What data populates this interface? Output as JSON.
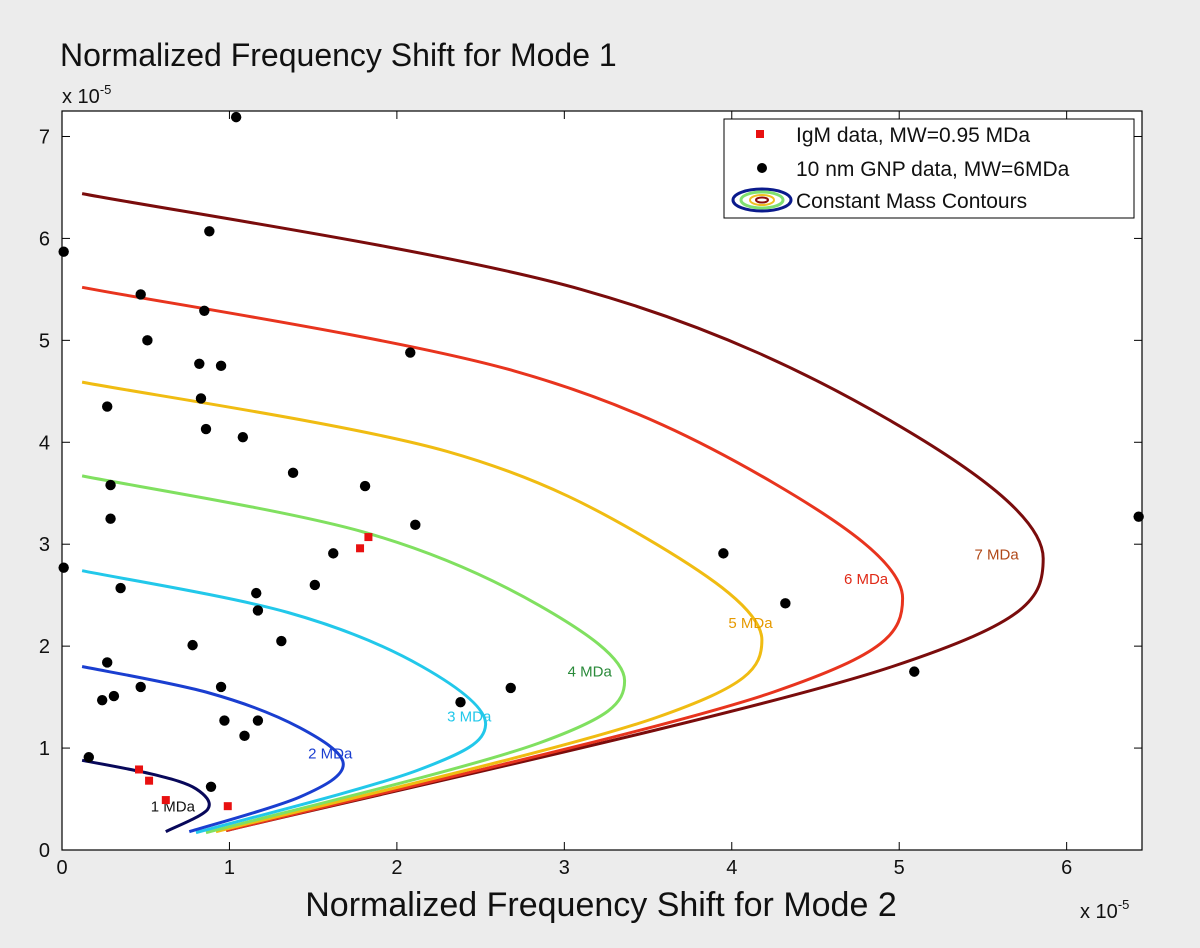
{
  "chart_data": {
    "type": "scatter",
    "title": "Normalized Frequency Shift for Mode 1",
    "xlabel": "Normalized Frequency Shift for Mode 2",
    "ylabel": "",
    "x_multiplier": {
      "base": "x 10",
      "exp": "-5"
    },
    "y_multiplier": {
      "base": "x 10",
      "exp": "-5"
    },
    "xlim": [
      0,
      6.45
    ],
    "ylim": [
      0,
      7.25
    ],
    "x_ticks": [
      0,
      1,
      2,
      3,
      4,
      5,
      6
    ],
    "y_ticks": [
      0,
      1,
      2,
      3,
      4,
      5,
      6,
      7
    ],
    "x_tick_labels": [
      "0",
      "1",
      "2",
      "3",
      "4",
      "5",
      "6"
    ],
    "y_tick_labels": [
      "0",
      "1",
      "2",
      "3",
      "4",
      "5",
      "6",
      "7"
    ],
    "grid": false,
    "legend_position": "top-right",
    "legend": [
      {
        "label": "IgM data, MW=0.95 MDa",
        "marker": "square",
        "color": "#e81010"
      },
      {
        "label": "10 nm GNP data, MW=6MDa",
        "marker": "circle",
        "color": "#000000"
      },
      {
        "label": "Constant Mass Contours",
        "marker": "contour-ellipse",
        "color": "#0a1a8c"
      }
    ],
    "series": [
      {
        "name": "IgM data, MW=0.95 MDa",
        "marker": "square",
        "color": "#e81010",
        "points": [
          [
            0.46,
            0.79
          ],
          [
            0.52,
            0.68
          ],
          [
            0.62,
            0.49
          ],
          [
            0.99,
            0.43
          ],
          [
            1.78,
            2.96
          ],
          [
            1.83,
            3.07
          ]
        ]
      },
      {
        "name": "10 nm GNP data, MW=6MDa",
        "marker": "circle",
        "color": "#000000",
        "points": [
          [
            0.01,
            5.87
          ],
          [
            0.01,
            2.77
          ],
          [
            0.16,
            0.91
          ],
          [
            0.24,
            1.47
          ],
          [
            0.27,
            1.84
          ],
          [
            0.27,
            4.35
          ],
          [
            0.29,
            3.58
          ],
          [
            0.29,
            3.25
          ],
          [
            0.31,
            1.51
          ],
          [
            0.35,
            2.57
          ],
          [
            0.47,
            5.45
          ],
          [
            0.47,
            1.6
          ],
          [
            0.51,
            5.0
          ],
          [
            0.78,
            2.01
          ],
          [
            0.82,
            4.77
          ],
          [
            0.83,
            4.43
          ],
          [
            0.85,
            5.29
          ],
          [
            0.86,
            4.13
          ],
          [
            0.88,
            6.07
          ],
          [
            0.89,
            0.62
          ],
          [
            0.95,
            4.75
          ],
          [
            0.95,
            1.6
          ],
          [
            0.97,
            1.27
          ],
          [
            1.04,
            7.19
          ],
          [
            1.08,
            4.05
          ],
          [
            1.09,
            1.12
          ],
          [
            1.16,
            2.52
          ],
          [
            1.17,
            2.35
          ],
          [
            1.17,
            1.27
          ],
          [
            1.31,
            2.05
          ],
          [
            1.38,
            3.7
          ],
          [
            1.51,
            2.6
          ],
          [
            1.62,
            2.91
          ],
          [
            1.81,
            3.57
          ],
          [
            2.08,
            4.88
          ],
          [
            2.11,
            3.19
          ],
          [
            2.38,
            1.45
          ],
          [
            2.68,
            1.59
          ],
          [
            3.95,
            2.91
          ],
          [
            4.32,
            2.42
          ],
          [
            5.09,
            1.75
          ],
          [
            6.43,
            3.27
          ]
        ]
      }
    ],
    "contours": [
      {
        "label": "1 MDa",
        "mass": 1,
        "color": "#08085a",
        "label_color": "#111111",
        "curve": [
          [
            0.12,
            0.88
          ],
          [
            0.55,
            0.74
          ],
          [
            0.8,
            0.6
          ],
          [
            0.87,
            0.4
          ],
          [
            0.62,
            0.18
          ]
        ],
        "label_at": [
          0.53,
          0.38
        ]
      },
      {
        "label": "2 MDa",
        "mass": 2,
        "color": "#1a3ed0",
        "label_color": "#1a3ed0",
        "curve": [
          [
            0.12,
            1.8
          ],
          [
            0.88,
            1.54
          ],
          [
            1.42,
            1.2
          ],
          [
            1.68,
            0.84
          ],
          [
            1.42,
            0.52
          ],
          [
            0.76,
            0.18
          ]
        ],
        "label_at": [
          1.47,
          0.9
        ]
      },
      {
        "label": "3 MDa",
        "mass": 3,
        "color": "#22c8ea",
        "label_color": "#22c8ea",
        "curve": [
          [
            0.12,
            2.74
          ],
          [
            1.35,
            2.33
          ],
          [
            2.15,
            1.8
          ],
          [
            2.53,
            1.23
          ],
          [
            2.12,
            0.78
          ],
          [
            0.8,
            0.17
          ]
        ],
        "label_at": [
          2.3,
          1.26
        ]
      },
      {
        "label": "4 MDa",
        "mass": 4,
        "color": "#80e060",
        "label_color": "#2a8a3a",
        "curve": [
          [
            0.12,
            3.67
          ],
          [
            1.8,
            3.12
          ],
          [
            2.85,
            2.4
          ],
          [
            3.36,
            1.66
          ],
          [
            2.85,
            1.05
          ],
          [
            0.86,
            0.17
          ]
        ],
        "label_at": [
          3.02,
          1.7
        ]
      },
      {
        "label": "5 MDa",
        "mass": 5,
        "color": "#f0bc12",
        "label_color": "#e69a00",
        "curve": [
          [
            0.12,
            4.59
          ],
          [
            2.3,
            3.91
          ],
          [
            3.55,
            3.0
          ],
          [
            4.18,
            2.06
          ],
          [
            3.55,
            1.3
          ],
          [
            0.92,
            0.18
          ]
        ],
        "label_at": [
          3.98,
          2.18
        ]
      },
      {
        "label": "6 MDa",
        "mass": 6,
        "color": "#e8341e",
        "label_color": "#e02a18",
        "curve": [
          [
            0.12,
            5.52
          ],
          [
            2.7,
            4.7
          ],
          [
            4.25,
            3.6
          ],
          [
            5.02,
            2.47
          ],
          [
            4.25,
            1.55
          ],
          [
            0.98,
            0.19
          ]
        ],
        "label_at": [
          4.67,
          2.61
        ]
      },
      {
        "label": "7 MDa",
        "mass": 7,
        "color": "#7a0c0c",
        "label_color": "#b04818",
        "curve": [
          [
            0.12,
            6.44
          ],
          [
            3.1,
            5.5
          ],
          [
            4.96,
            4.2
          ],
          [
            5.86,
            2.86
          ],
          [
            4.96,
            1.8
          ],
          [
            0.98,
            0.19
          ]
        ],
        "label_at": [
          5.45,
          2.85
        ]
      }
    ]
  }
}
